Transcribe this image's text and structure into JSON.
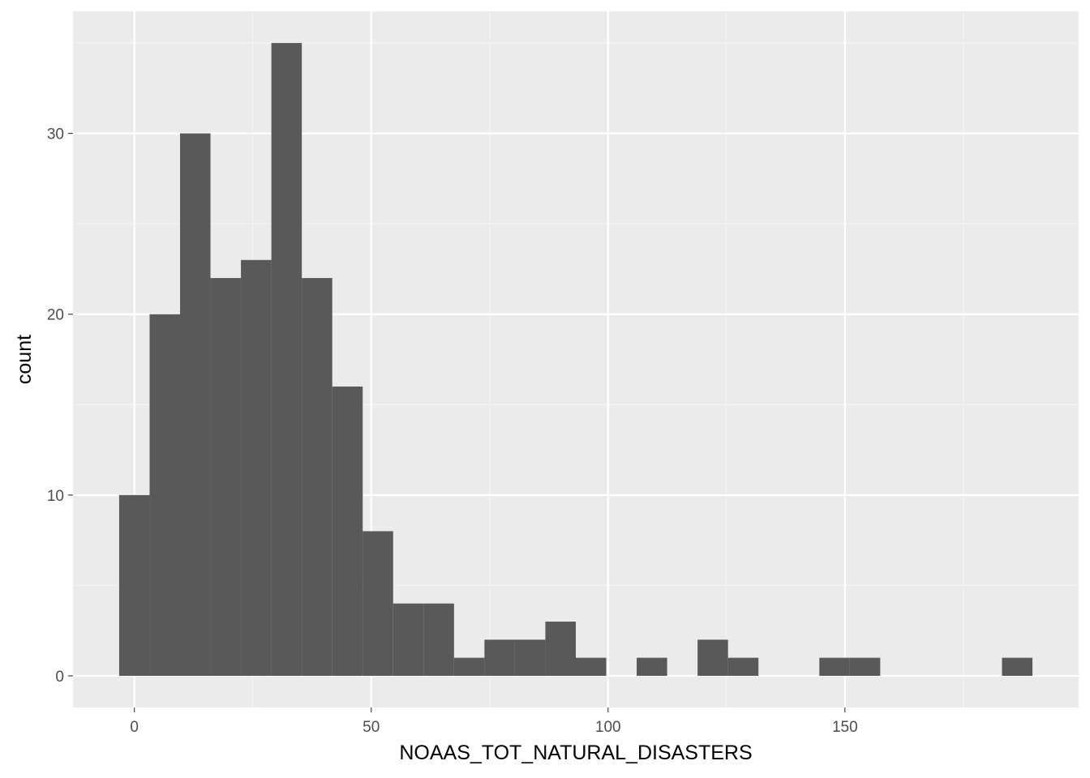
{
  "chart_data": {
    "type": "bar",
    "title": "",
    "xlabel": "NOAAS_TOT_NATURAL_DISASTERS",
    "ylabel": "count",
    "binwidth": 6.4267,
    "bin_centers": [
      0,
      6.4267,
      12.8533,
      19.28,
      25.7067,
      32.1333,
      38.56,
      44.9867,
      51.4133,
      57.84,
      64.2667,
      70.6933,
      77.12,
      83.5467,
      89.9733,
      96.4,
      102.8267,
      109.2533,
      115.68,
      122.1067,
      128.5333,
      134.96,
      141.3867,
      147.8133,
      154.24,
      160.6667,
      167.0933,
      173.52,
      179.9467,
      186.3733
    ],
    "values": [
      10,
      20,
      30,
      22,
      23,
      35,
      22,
      16,
      8,
      4,
      4,
      1,
      2,
      2,
      3,
      1,
      0,
      1,
      0,
      2,
      1,
      0,
      0,
      1,
      1,
      0,
      0,
      0,
      0,
      1
    ],
    "xlim": [
      -12.96,
      199.34
    ],
    "ylim": [
      -1.75,
      36.75
    ],
    "x_ticks": [
      0,
      50,
      100,
      150
    ],
    "x_tick_labels": [
      "0",
      "50",
      "100",
      "150"
    ],
    "y_ticks": [
      0,
      10,
      20,
      30
    ],
    "y_tick_labels": [
      "0",
      "10",
      "20",
      "30"
    ],
    "grid": true,
    "colors": {
      "panel_background": "#ebebeb",
      "grid_major": "#ffffff",
      "grid_minor": "#f5f5f5",
      "bar_fill": "#595959",
      "tick_label": "#4d4d4d",
      "tick_mark": "#333333",
      "axis_title": "#000000"
    }
  }
}
